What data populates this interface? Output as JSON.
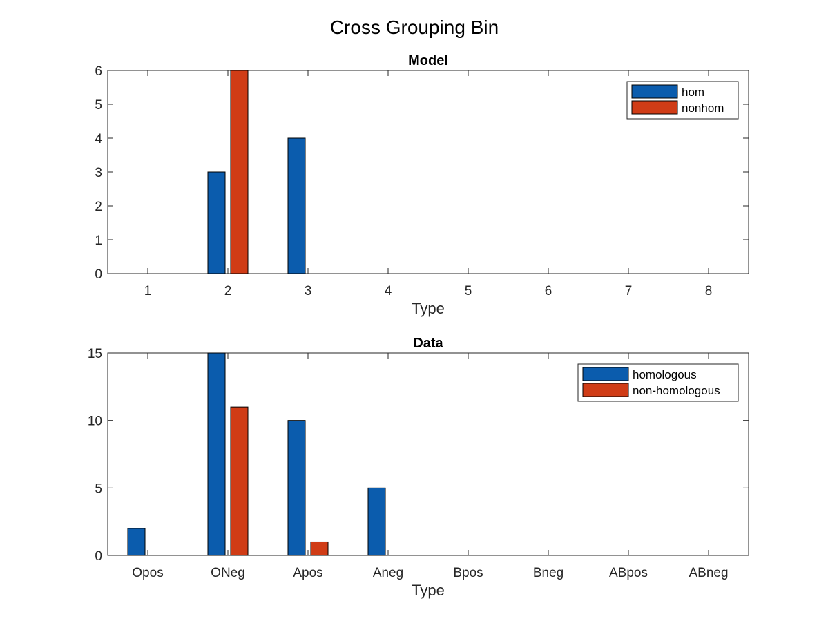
{
  "figure": {
    "title": "Cross Grouping Bin"
  },
  "chart_data": [
    {
      "type": "bar",
      "title": "Model",
      "xlabel": "Type",
      "ylabel": "",
      "categories": [
        "1",
        "2",
        "3",
        "4",
        "5",
        "6",
        "7",
        "8"
      ],
      "ylim": [
        0,
        6
      ],
      "yticks": [
        0,
        1,
        2,
        3,
        4,
        5,
        6
      ],
      "legend_position": "top-right",
      "grid": false,
      "series": [
        {
          "name": "hom",
          "color": "#0b5cad",
          "values": [
            0,
            3,
            4,
            0,
            0,
            0,
            0,
            0
          ]
        },
        {
          "name": "nonhom",
          "color": "#d03c16",
          "values": [
            0,
            6,
            0,
            0,
            0,
            0,
            0,
            0
          ]
        }
      ]
    },
    {
      "type": "bar",
      "title": "Data",
      "xlabel": "Type",
      "ylabel": "",
      "categories": [
        "Opos",
        "ONeg",
        "Apos",
        "Aneg",
        "Bpos",
        "Bneg",
        "ABpos",
        "ABneg"
      ],
      "ylim": [
        0,
        15
      ],
      "yticks": [
        0,
        5,
        10,
        15
      ],
      "legend_position": "top-right",
      "grid": false,
      "series": [
        {
          "name": "homologous",
          "color": "#0b5cad",
          "values": [
            2,
            15,
            10,
            5,
            0,
            0,
            0,
            0
          ]
        },
        {
          "name": "non-homologous",
          "color": "#d03c16",
          "values": [
            0,
            11,
            1,
            0,
            0,
            0,
            0,
            0
          ]
        }
      ]
    }
  ]
}
